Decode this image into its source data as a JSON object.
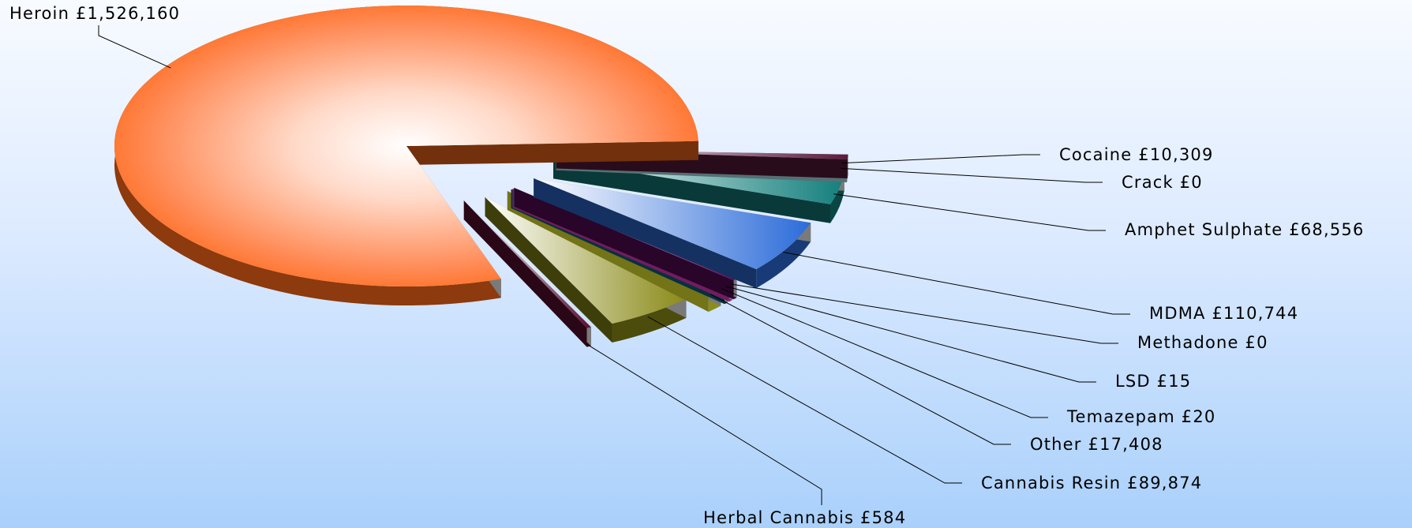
{
  "chart_data": {
    "type": "pie",
    "style": "3d-exploded",
    "legend": "none",
    "slices": [
      {
        "name": "Heroin",
        "value": 1526160,
        "label": "Heroin  £1,526,160",
        "color": "#ff6a1a"
      },
      {
        "name": "Cocaine",
        "value": 10309,
        "label": "Cocaine  £10,309",
        "color": "#5a1a3c"
      },
      {
        "name": "Crack",
        "value": 0,
        "label": "Crack £0",
        "color": "#bff6ff"
      },
      {
        "name": "Amphet Sulphate",
        "value": 68556,
        "label": "Amphet Sulphate  £68,556",
        "color": "#137f7c"
      },
      {
        "name": "MDMA",
        "value": 110744,
        "label": "MDMA  £110,744",
        "color": "#2c6cd9"
      },
      {
        "name": "Methadone",
        "value": 0,
        "label": "Methadone  £0",
        "color": "#5c0a5c"
      },
      {
        "name": "LSD",
        "value": 15,
        "label": "LSD  £15",
        "color": "#ff3fd2"
      },
      {
        "name": "Temazepam",
        "value": 20,
        "label": "Temazepam  £20",
        "color": "#0a6d8a"
      },
      {
        "name": "Other",
        "value": 17408,
        "label": "Other  £17,408",
        "color": "#ffff33"
      },
      {
        "name": "Cannabis Resin",
        "value": 89874,
        "label": "Cannabis Resin  £89,874",
        "color": "#8a8a18"
      },
      {
        "name": "Herbal Cannabis",
        "value": 584,
        "label": "Herbal Cannabis  £584",
        "color": "#5a1030"
      }
    ]
  }
}
